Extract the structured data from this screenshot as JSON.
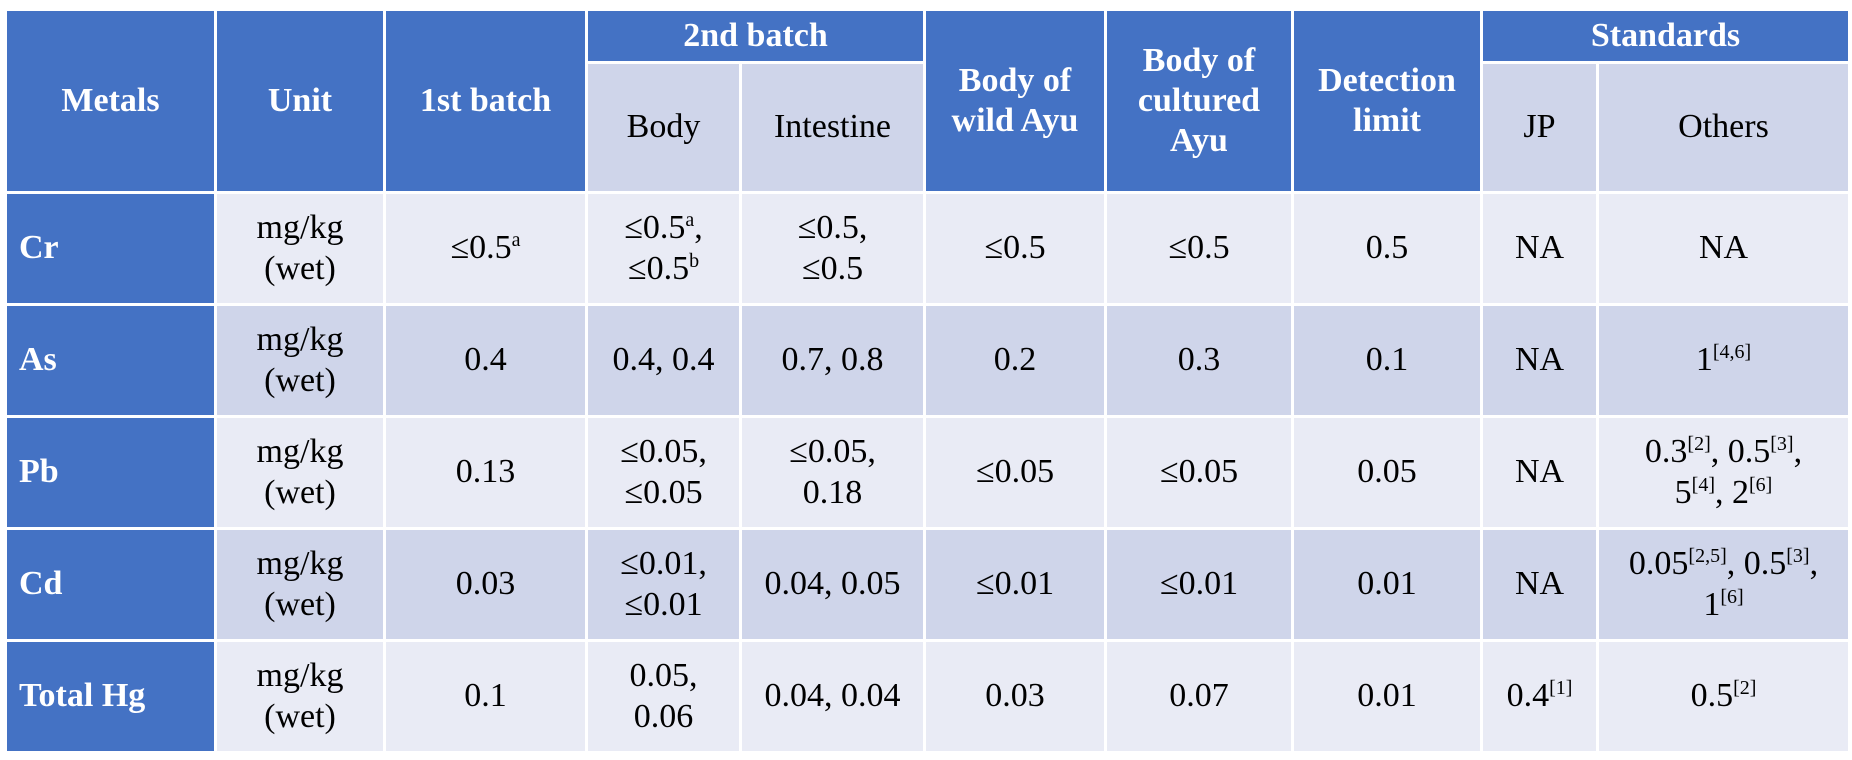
{
  "header": {
    "metals": "Metals",
    "unit": "Unit",
    "first_batch": "1st batch",
    "second_batch": {
      "title": "2nd batch",
      "body": "Body",
      "intestine": "Intestine"
    },
    "wild": "Body of wild Ayu",
    "cultured": "Body of cultured Ayu",
    "detection": "Detection limit",
    "standards": {
      "title": "Standards",
      "jp": "JP",
      "others": "Others"
    }
  },
  "table": {
    "rows": [
      {
        "cells": [
          [
            [
              "Cr"
            ]
          ],
          [
            [
              "mg/kg"
            ],
            [
              "(wet)"
            ]
          ],
          [
            [
              "≤0.5",
              {
                "sup": "a"
              }
            ]
          ],
          [
            [
              "≤0.5",
              {
                "sup": "a"
              },
              ","
            ],
            [
              "≤0.5",
              {
                "sup": "b"
              }
            ]
          ],
          [
            [
              "≤0.5,"
            ],
            [
              "≤0.5"
            ]
          ],
          [
            [
              "≤0.5"
            ]
          ],
          [
            [
              "≤0.5"
            ]
          ],
          [
            [
              "0.5"
            ]
          ],
          [
            [
              "NA"
            ]
          ],
          [
            [
              "NA"
            ]
          ]
        ]
      },
      {
        "cells": [
          [
            [
              "As"
            ]
          ],
          [
            [
              "mg/kg"
            ],
            [
              "(wet)"
            ]
          ],
          [
            [
              "0.4"
            ]
          ],
          [
            [
              "0.4, 0.4"
            ]
          ],
          [
            [
              "0.7, 0.8"
            ]
          ],
          [
            [
              "0.2"
            ]
          ],
          [
            [
              "0.3"
            ]
          ],
          [
            [
              "0.1"
            ]
          ],
          [
            [
              "NA"
            ]
          ],
          [
            [
              "1",
              {
                "sup": "[4,6]"
              }
            ]
          ]
        ]
      },
      {
        "cells": [
          [
            [
              "Pb"
            ]
          ],
          [
            [
              "mg/kg"
            ],
            [
              "(wet)"
            ]
          ],
          [
            [
              "0.13"
            ]
          ],
          [
            [
              "≤0.05,"
            ],
            [
              "≤0.05"
            ]
          ],
          [
            [
              "≤0.05,"
            ],
            [
              "0.18"
            ]
          ],
          [
            [
              "≤0.05"
            ]
          ],
          [
            [
              "≤0.05"
            ]
          ],
          [
            [
              "0.05"
            ]
          ],
          [
            [
              "NA"
            ]
          ],
          [
            [
              "0.3",
              {
                "sup": "[2]"
              },
              ", 0.5",
              {
                "sup": "[3]"
              },
              ","
            ],
            [
              "5",
              {
                "sup": "[4]"
              },
              ", 2",
              {
                "sup": "[6]"
              }
            ]
          ]
        ]
      },
      {
        "cells": [
          [
            [
              "Cd"
            ]
          ],
          [
            [
              "mg/kg"
            ],
            [
              "(wet)"
            ]
          ],
          [
            [
              "0.03"
            ]
          ],
          [
            [
              "≤0.01,"
            ],
            [
              "≤0.01"
            ]
          ],
          [
            [
              "0.04, 0.05"
            ]
          ],
          [
            [
              "≤0.01"
            ]
          ],
          [
            [
              "≤0.01"
            ]
          ],
          [
            [
              "0.01"
            ]
          ],
          [
            [
              "NA"
            ]
          ],
          [
            [
              "0.05",
              {
                "sup": "[2,5]"
              },
              ", 0.5",
              {
                "sup": "[3]"
              },
              ","
            ],
            [
              "1",
              {
                "sup": "[6]"
              }
            ]
          ]
        ]
      },
      {
        "cells": [
          [
            [
              "Total Hg"
            ]
          ],
          [
            [
              "mg/kg"
            ],
            [
              "(wet)"
            ]
          ],
          [
            [
              "0.1"
            ]
          ],
          [
            [
              "0.05,"
            ],
            [
              "0.06"
            ]
          ],
          [
            [
              "0.04, 0.04"
            ]
          ],
          [
            [
              "0.03"
            ]
          ],
          [
            [
              "0.07"
            ]
          ],
          [
            [
              "0.01"
            ]
          ],
          [
            [
              "0.4",
              {
                "sup": "[1]"
              }
            ]
          ],
          [
            [
              "0.5",
              {
                "sup": "[2]"
              }
            ]
          ]
        ]
      }
    ]
  }
}
